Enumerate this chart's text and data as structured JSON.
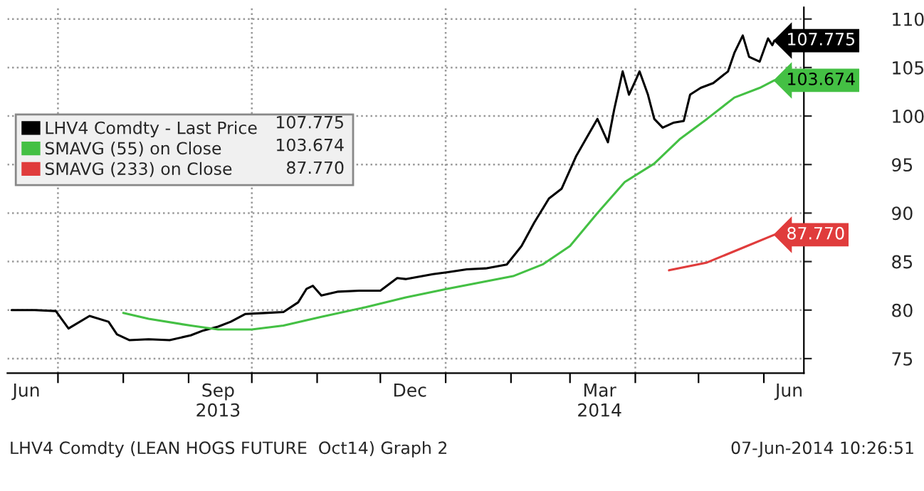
{
  "chart_data": {
    "type": "line",
    "xlim": [
      "2013-06-07",
      "2014-06-20"
    ],
    "xticks": [
      {
        "value": "2013-06-16",
        "label": "Jun"
      },
      {
        "value": "2013-09-15",
        "label": "Sep\n2013"
      },
      {
        "value": "2013-12-15",
        "label": "Dec"
      },
      {
        "value": "2014-03-15",
        "label": "Mar\n2014"
      },
      {
        "value": "2014-06-13",
        "label": "Jun"
      },
      {
        "value": "2013-07-01",
        "label": null
      },
      {
        "value": "2013-08-01",
        "label": null
      },
      {
        "value": "2013-09-01",
        "label": null
      },
      {
        "value": "2013-10-01",
        "label": null
      },
      {
        "value": "2013-11-01",
        "label": null
      },
      {
        "value": "2013-12-01",
        "label": null
      },
      {
        "value": "2014-01-01",
        "label": null
      },
      {
        "value": "2014-02-01",
        "label": null
      },
      {
        "value": "2014-03-01",
        "label": null
      },
      {
        "value": "2014-04-01",
        "label": null
      },
      {
        "value": "2014-05-01",
        "label": null
      },
      {
        "value": "2014-06-01",
        "label": null
      }
    ],
    "ylim": [
      73.5,
      111.2
    ],
    "yticks": [
      75,
      80,
      85,
      90,
      95,
      100,
      105,
      110
    ],
    "grid": "y",
    "legend": "left",
    "ref_lines": [
      {
        "axis": "x",
        "value": "2013-07-01",
        "color": "#999999",
        "line_style": "dotted"
      },
      {
        "axis": "x",
        "value": "2013-10-01",
        "color": "#999999",
        "line_style": "dotted"
      },
      {
        "axis": "x",
        "value": "2014-01-01",
        "color": "#999999",
        "line_style": "dotted"
      },
      {
        "axis": "x",
        "value": "2014-04-01",
        "color": "#999999",
        "line_style": "dotted"
      }
    ],
    "series": [
      {
        "name": "LHV4 Comdty - Last Price",
        "color": "#000000",
        "x": [
          "2013-06-09",
          "2013-06-20",
          "2013-06-30",
          "2013-07-06",
          "2013-07-16",
          "2013-07-25",
          "2013-07-29",
          "2013-08-04",
          "2013-08-13",
          "2013-08-23",
          "2013-09-02",
          "2013-09-08",
          "2013-09-15",
          "2013-09-21",
          "2013-09-28",
          "2013-10-07",
          "2013-10-16",
          "2013-10-23",
          "2013-10-27",
          "2013-10-30",
          "2013-11-03",
          "2013-11-11",
          "2013-11-21",
          "2013-12-01",
          "2013-12-09",
          "2013-12-13",
          "2013-12-26",
          "2014-01-02",
          "2014-01-11",
          "2014-01-20",
          "2014-01-30",
          "2014-02-06",
          "2014-02-12",
          "2014-02-19",
          "2014-02-25",
          "2014-03-04",
          "2014-03-09",
          "2014-03-14",
          "2014-03-19",
          "2014-03-22",
          "2014-03-26",
          "2014-03-29",
          "2014-04-01",
          "2014-04-03",
          "2014-04-07",
          "2014-04-10",
          "2014-04-14",
          "2014-04-19",
          "2014-04-24",
          "2014-04-27",
          "2014-05-02",
          "2014-05-08",
          "2014-05-15",
          "2014-05-18",
          "2014-05-22",
          "2014-05-25",
          "2014-05-30",
          "2014-06-03",
          "2014-06-05",
          "2014-06-06"
        ],
        "values": [
          80.0,
          80.0,
          79.9,
          78.1,
          79.4,
          78.8,
          77.5,
          76.9,
          77.0,
          76.9,
          77.4,
          77.9,
          78.3,
          78.8,
          79.6,
          79.7,
          79.8,
          80.8,
          82.2,
          82.5,
          81.5,
          81.9,
          82.0,
          82.0,
          83.3,
          83.2,
          83.7,
          83.9,
          84.2,
          84.3,
          84.7,
          86.6,
          89.0,
          91.5,
          92.5,
          95.9,
          97.8,
          99.7,
          97.3,
          100.7,
          104.6,
          102.2,
          103.6,
          104.6,
          102.2,
          99.7,
          98.8,
          99.3,
          99.5,
          102.2,
          102.9,
          103.4,
          104.6,
          106.5,
          108.3,
          106.1,
          105.6,
          108.0,
          107.3,
          107.775
        ],
        "value_labels": [
          null,
          null,
          null,
          null,
          null,
          null,
          null,
          null,
          null,
          null,
          null,
          null,
          null,
          null,
          null,
          null,
          null,
          null,
          null,
          null,
          null,
          null,
          null,
          null,
          null,
          null,
          null,
          null,
          null,
          null,
          null,
          null,
          null,
          null,
          null,
          null,
          null,
          null,
          null,
          null,
          null,
          null,
          null,
          null,
          null,
          null,
          null,
          null,
          null,
          null,
          null,
          null,
          null,
          null,
          null,
          null,
          null,
          null,
          null,
          "107.775"
        ]
      },
      {
        "name": "SMAVG (55) on Close",
        "color": "#44c044",
        "x": [
          "2013-08-01",
          "2013-08-13",
          "2013-09-02",
          "2013-09-15",
          "2013-10-01",
          "2013-10-16",
          "2013-11-03",
          "2013-11-24",
          "2013-12-13",
          "2014-01-02",
          "2014-02-02",
          "2014-02-16",
          "2014-03-01",
          "2014-03-14",
          "2014-03-27",
          "2014-04-10",
          "2014-04-22",
          "2014-05-05",
          "2014-05-18",
          "2014-05-30",
          "2014-06-06"
        ],
        "values": [
          79.7,
          79.1,
          78.4,
          78.0,
          78.0,
          78.4,
          79.3,
          80.3,
          81.3,
          82.2,
          83.5,
          84.7,
          86.6,
          90.0,
          93.2,
          95.1,
          97.6,
          99.7,
          101.9,
          102.9,
          103.674
        ],
        "value_labels": [
          null,
          null,
          null,
          null,
          null,
          null,
          null,
          null,
          null,
          null,
          null,
          null,
          null,
          null,
          null,
          null,
          null,
          null,
          null,
          null,
          "103.674"
        ]
      },
      {
        "name": "SMAVG (233) on Close",
        "color": "#e03c3c",
        "x": [
          "2014-04-17",
          "2014-05-05",
          "2014-05-24",
          "2014-06-06"
        ],
        "values": [
          84.1,
          84.9,
          86.6,
          87.77
        ],
        "value_labels": [
          null,
          null,
          null,
          "87.770"
        ]
      }
    ],
    "annotations": [
      "LHV4 Comdty (LEAN HOGS FUTURE  Oct14) Graph 2",
      "07-Jun-2014 10:26:51"
    ]
  }
}
